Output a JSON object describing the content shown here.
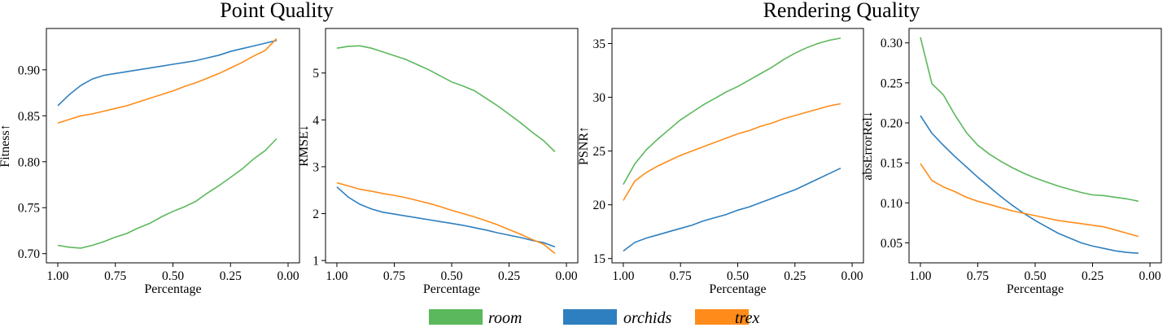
{
  "group_titles": [
    "Point Quality",
    "Rendering Quality"
  ],
  "colors": {
    "room": "#5cb85c",
    "orchids": "#2e7fbf",
    "trex": "#ff8c1a"
  },
  "legend": [
    {
      "name": "room",
      "color": "#5cb85c"
    },
    {
      "name": "orchids",
      "color": "#2e7fbf"
    },
    {
      "name": "trex",
      "color": "#ff8c1a"
    }
  ],
  "chart_data": [
    {
      "type": "line",
      "group": "Point Quality",
      "xlabel": "Percentage",
      "ylabel": "Fitness↑",
      "xlim": [
        1.0,
        0.0
      ],
      "ylim": [
        0.69,
        0.945
      ],
      "xticks": [
        "1.00",
        "0.75",
        "0.50",
        "0.25",
        "0.00"
      ],
      "yticks": [
        "0.70",
        "0.75",
        "0.80",
        "0.85",
        "0.90"
      ],
      "x": [
        1.0,
        0.95,
        0.9,
        0.85,
        0.8,
        0.75,
        0.7,
        0.65,
        0.6,
        0.55,
        0.5,
        0.45,
        0.4,
        0.35,
        0.3,
        0.25,
        0.2,
        0.15,
        0.1,
        0.05
      ],
      "series": [
        {
          "name": "room",
          "values": [
            0.709,
            0.707,
            0.706,
            0.709,
            0.713,
            0.718,
            0.722,
            0.728,
            0.733,
            0.74,
            0.746,
            0.751,
            0.757,
            0.766,
            0.774,
            0.783,
            0.792,
            0.803,
            0.812,
            0.825
          ]
        },
        {
          "name": "orchids",
          "values": [
            0.861,
            0.873,
            0.883,
            0.89,
            0.894,
            0.896,
            0.898,
            0.9,
            0.902,
            0.904,
            0.906,
            0.908,
            0.91,
            0.913,
            0.916,
            0.92,
            0.923,
            0.926,
            0.929,
            0.932
          ]
        },
        {
          "name": "trex",
          "values": [
            0.842,
            0.846,
            0.85,
            0.852,
            0.855,
            0.858,
            0.861,
            0.865,
            0.869,
            0.873,
            0.877,
            0.882,
            0.886,
            0.891,
            0.896,
            0.902,
            0.908,
            0.915,
            0.921,
            0.934
          ]
        }
      ]
    },
    {
      "type": "line",
      "group": "Point Quality",
      "xlabel": "Percentage",
      "ylabel": "RMSE↓",
      "xlim": [
        1.0,
        0.0
      ],
      "ylim": [
        0.95,
        5.95
      ],
      "xticks": [
        "1.00",
        "0.75",
        "0.50",
        "0.25",
        "0.00"
      ],
      "yticks": [
        "1",
        "2",
        "3",
        "4",
        "5"
      ],
      "x": [
        1.0,
        0.95,
        0.9,
        0.85,
        0.8,
        0.75,
        0.7,
        0.65,
        0.6,
        0.55,
        0.5,
        0.45,
        0.4,
        0.35,
        0.3,
        0.25,
        0.2,
        0.15,
        0.1,
        0.05
      ],
      "series": [
        {
          "name": "room",
          "values": [
            5.53,
            5.57,
            5.58,
            5.53,
            5.45,
            5.37,
            5.29,
            5.18,
            5.07,
            4.94,
            4.81,
            4.72,
            4.62,
            4.46,
            4.3,
            4.12,
            3.94,
            3.74,
            3.56,
            3.32
          ]
        },
        {
          "name": "orchids",
          "values": [
            2.57,
            2.35,
            2.2,
            2.1,
            2.03,
            1.99,
            1.95,
            1.91,
            1.87,
            1.83,
            1.79,
            1.75,
            1.7,
            1.65,
            1.59,
            1.54,
            1.49,
            1.43,
            1.38,
            1.29
          ]
        },
        {
          "name": "trex",
          "values": [
            2.66,
            2.59,
            2.52,
            2.48,
            2.43,
            2.39,
            2.34,
            2.28,
            2.22,
            2.15,
            2.07,
            2.0,
            1.93,
            1.85,
            1.76,
            1.66,
            1.56,
            1.45,
            1.35,
            1.15
          ]
        }
      ]
    },
    {
      "type": "line",
      "group": "Rendering Quality",
      "xlabel": "Percentage",
      "ylabel": "PSNR↑",
      "xlim": [
        1.0,
        0.0
      ],
      "ylim": [
        14.6,
        36.4
      ],
      "xticks": [
        "1.00",
        "0.75",
        "0.50",
        "0.25",
        "0.00"
      ],
      "yticks": [
        "15",
        "20",
        "25",
        "30",
        "35"
      ],
      "x": [
        1.0,
        0.95,
        0.9,
        0.85,
        0.8,
        0.75,
        0.7,
        0.65,
        0.6,
        0.55,
        0.5,
        0.45,
        0.4,
        0.35,
        0.3,
        0.25,
        0.2,
        0.15,
        0.1,
        0.05
      ],
      "series": [
        {
          "name": "room",
          "values": [
            21.9,
            23.8,
            25.1,
            26.1,
            27.0,
            27.9,
            28.6,
            29.3,
            29.9,
            30.5,
            31.0,
            31.6,
            32.2,
            32.8,
            33.5,
            34.1,
            34.6,
            35.0,
            35.3,
            35.5
          ]
        },
        {
          "name": "orchids",
          "values": [
            15.7,
            16.5,
            16.9,
            17.2,
            17.5,
            17.8,
            18.1,
            18.5,
            18.8,
            19.1,
            19.5,
            19.8,
            20.2,
            20.6,
            21.0,
            21.4,
            21.9,
            22.4,
            22.9,
            23.4
          ]
        },
        {
          "name": "trex",
          "values": [
            20.4,
            22.2,
            23.0,
            23.6,
            24.1,
            24.6,
            25.0,
            25.4,
            25.8,
            26.2,
            26.6,
            26.9,
            27.3,
            27.6,
            28.0,
            28.3,
            28.6,
            28.9,
            29.2,
            29.4
          ]
        }
      ]
    },
    {
      "type": "line",
      "group": "Rendering Quality",
      "xlabel": "Percentage",
      "ylabel": "absErrorRel↓",
      "xlim": [
        1.0,
        0.0
      ],
      "ylim": [
        0.025,
        0.318
      ],
      "xticks": [
        "1.00",
        "0.75",
        "0.50",
        "0.25",
        "0.00"
      ],
      "yticks": [
        "0.05",
        "0.10",
        "0.15",
        "0.20",
        "0.25",
        "0.30"
      ],
      "x": [
        1.0,
        0.95,
        0.9,
        0.85,
        0.8,
        0.75,
        0.7,
        0.65,
        0.6,
        0.55,
        0.5,
        0.45,
        0.4,
        0.35,
        0.3,
        0.25,
        0.2,
        0.15,
        0.1,
        0.05
      ],
      "series": [
        {
          "name": "room",
          "values": [
            0.307,
            0.249,
            0.235,
            0.21,
            0.188,
            0.172,
            0.161,
            0.152,
            0.144,
            0.137,
            0.131,
            0.126,
            0.121,
            0.117,
            0.113,
            0.11,
            0.109,
            0.107,
            0.105,
            0.102
          ]
        },
        {
          "name": "orchids",
          "values": [
            0.209,
            0.187,
            0.172,
            0.158,
            0.145,
            0.132,
            0.12,
            0.108,
            0.097,
            0.087,
            0.078,
            0.07,
            0.062,
            0.056,
            0.05,
            0.046,
            0.043,
            0.04,
            0.038,
            0.037
          ]
        },
        {
          "name": "trex",
          "values": [
            0.149,
            0.128,
            0.12,
            0.114,
            0.107,
            0.102,
            0.098,
            0.094,
            0.09,
            0.087,
            0.084,
            0.081,
            0.078,
            0.076,
            0.074,
            0.072,
            0.07,
            0.066,
            0.062,
            0.058
          ]
        }
      ]
    }
  ]
}
